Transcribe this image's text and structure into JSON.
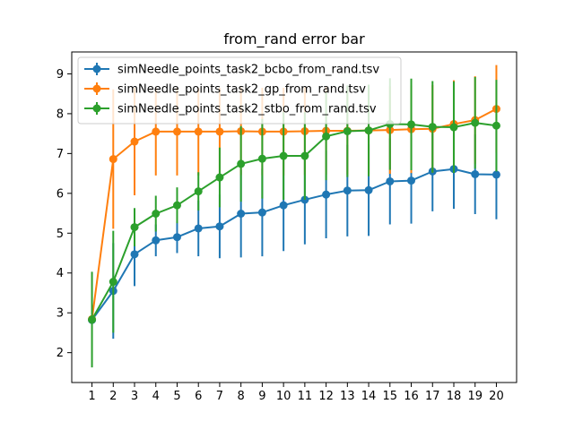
{
  "chart_data": {
    "type": "line",
    "title": "from_rand error bar",
    "xlabel": "",
    "ylabel": "",
    "x": [
      1,
      2,
      3,
      4,
      5,
      6,
      7,
      8,
      9,
      10,
      11,
      12,
      13,
      14,
      15,
      16,
      17,
      18,
      19,
      20
    ],
    "xticks": [
      "1",
      "2",
      "3",
      "4",
      "5",
      "6",
      "7",
      "8",
      "9",
      "10",
      "11",
      "12",
      "13",
      "14",
      "15",
      "16",
      "17",
      "18",
      "19",
      "20"
    ],
    "xlim": [
      0.05,
      20.95
    ],
    "ylim": [
      1.25,
      9.55
    ],
    "yticks": [
      "2",
      "3",
      "4",
      "5",
      "6",
      "7",
      "8",
      "9"
    ],
    "grid": false,
    "legend_position": "top-left",
    "series": [
      {
        "name": "simNeedle_points_task2_bcbo_from_rand.tsv",
        "color": "#1f77b4",
        "values": [
          2.82,
          3.55,
          4.47,
          4.82,
          4.9,
          5.12,
          5.17,
          5.49,
          5.52,
          5.7,
          5.84,
          5.97,
          6.07,
          6.08,
          6.3,
          6.32,
          6.55,
          6.61,
          6.48,
          6.47
        ],
        "errors": [
          0.1,
          1.2,
          0.8,
          0.4,
          0.4,
          0.7,
          0.8,
          1.1,
          1.1,
          1.15,
          1.12,
          1.1,
          1.15,
          1.15,
          1.08,
          1.08,
          1.0,
          1.0,
          1.0,
          1.12
        ]
      },
      {
        "name": "simNeedle_points_task2_gp_from_rand.tsv",
        "color": "#ff7f0e",
        "values": [
          2.84,
          6.86,
          7.3,
          7.55,
          7.55,
          7.55,
          7.55,
          7.56,
          7.55,
          7.55,
          7.56,
          7.57,
          7.57,
          7.58,
          7.59,
          7.61,
          7.62,
          7.74,
          7.84,
          8.12
        ],
        "errors": [
          0.1,
          1.75,
          1.35,
          1.1,
          1.1,
          1.1,
          1.1,
          1.1,
          1.1,
          1.1,
          1.1,
          1.1,
          1.1,
          1.1,
          1.1,
          1.1,
          1.1,
          1.1,
          1.1,
          1.1
        ]
      },
      {
        "name": "simNeedle_points_task2_stbo_from_rand.tsv",
        "color": "#2ca02c",
        "values": [
          2.83,
          3.78,
          5.15,
          5.49,
          5.7,
          6.05,
          6.4,
          6.74,
          6.87,
          6.94,
          6.94,
          7.43,
          7.56,
          7.58,
          7.74,
          7.73,
          7.67,
          7.66,
          7.77,
          7.7
        ],
        "errors": [
          1.2,
          1.28,
          0.48,
          0.45,
          0.45,
          0.48,
          0.75,
          0.95,
          1.0,
          1.1,
          1.1,
          1.1,
          1.15,
          1.15,
          1.15,
          1.15,
          1.15,
          1.15,
          1.15,
          1.15
        ]
      }
    ]
  }
}
